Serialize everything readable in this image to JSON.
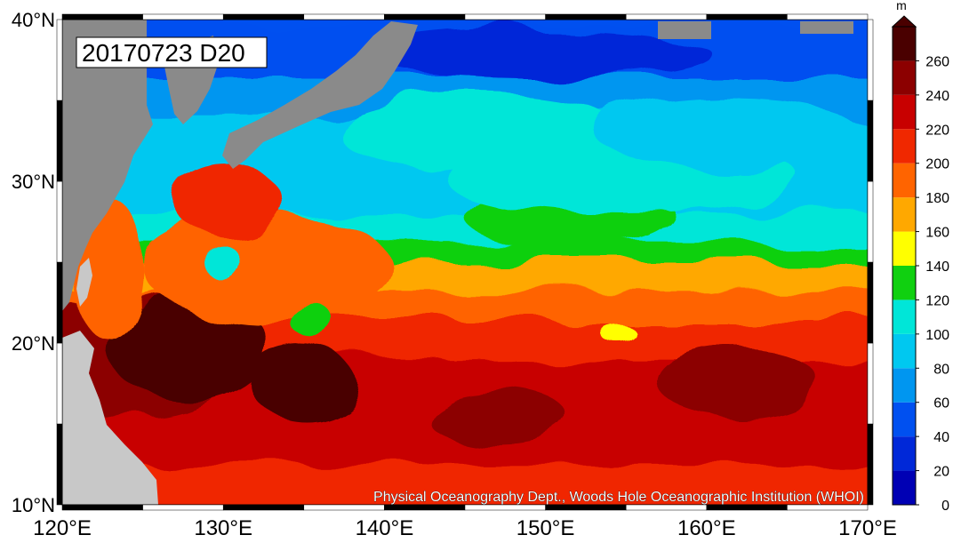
{
  "map": {
    "label": "20170723 D20",
    "credit": "Physical Oceanography Dept., Woods Hole Oceanographic Institution (WHOI)",
    "lon_range": [
      120,
      170
    ],
    "lat_range": [
      10,
      40
    ],
    "lon_ticks": [
      "120°E",
      "130°E",
      "140°E",
      "150°E",
      "160°E",
      "170°E"
    ],
    "lat_ticks": [
      "10°N",
      "20°N",
      "30°N",
      "40°N"
    ],
    "land_color": "#8a8a8a",
    "land_light_color": "#c8c8c8"
  },
  "colorbar": {
    "unit": "m",
    "ticks": [
      "0",
      "20",
      "40",
      "60",
      "80",
      "100",
      "120",
      "140",
      "160",
      "180",
      "200",
      "220",
      "240",
      "260"
    ],
    "colors": [
      "#0000b4",
      "#0028d8",
      "#0050f0",
      "#0096f0",
      "#00c8f0",
      "#00e6d8",
      "#10d010",
      "#ffff00",
      "#ffa800",
      "#ff6400",
      "#f02800",
      "#c80000",
      "#8c0000",
      "#4a0000"
    ]
  }
}
